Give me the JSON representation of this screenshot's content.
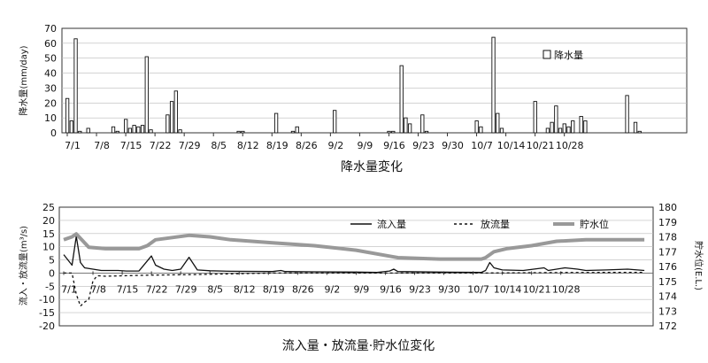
{
  "chart_data": [
    {
      "type": "bar",
      "caption": "降水量変化",
      "ylabel": "降水量(mm/day)",
      "legend": "降水量",
      "ylim": [
        0,
        70
      ],
      "yticks": [
        0,
        10,
        20,
        30,
        40,
        50,
        60,
        70
      ],
      "xticks": [
        "7/1",
        "7/8",
        "7/15",
        "7/22",
        "7/29",
        "8/5",
        "8/12",
        "8/19",
        "8/26",
        "9/2",
        "9/9",
        "9/16",
        "9/23",
        "9/30",
        "10/7",
        "10/14",
        "10/21",
        "10/28"
      ],
      "x_start": "7/1",
      "values": [
        23,
        8,
        63,
        1,
        0,
        3,
        0,
        0,
        0,
        0,
        0,
        4,
        1,
        0,
        9,
        3,
        5,
        4,
        5,
        51,
        2,
        0,
        0,
        0,
        12,
        21,
        28,
        2,
        0,
        0,
        0,
        0,
        0,
        0,
        0,
        0,
        0,
        0,
        0,
        0,
        0,
        1,
        1,
        0,
        0,
        0,
        0,
        0,
        0,
        0,
        13,
        0,
        0,
        0,
        1,
        4,
        0,
        0,
        0,
        0,
        0,
        0,
        0,
        0,
        15,
        0,
        0,
        0,
        0,
        0,
        0,
        0,
        0,
        0,
        0,
        0,
        0,
        1,
        1,
        0,
        45,
        10,
        6,
        0,
        0,
        12,
        1,
        0,
        0,
        0,
        0,
        0,
        0,
        0,
        0,
        0,
        0,
        0,
        8,
        4,
        0,
        0,
        64,
        13,
        3,
        0,
        0,
        0,
        0,
        0,
        0,
        0,
        21,
        0,
        0,
        3,
        7,
        18,
        3,
        6,
        4,
        8,
        0,
        11,
        8,
        0,
        0,
        0,
        0,
        0,
        0,
        0,
        0,
        0,
        25,
        0,
        7,
        1,
        0,
        0
      ]
    },
    {
      "type": "line",
      "caption": "流入量・放流量·貯水位変化",
      "ylabel_left": "流入・放流量(m³/s)",
      "ylabel_right": "貯水位(E.L.)",
      "ylim_left": [
        -20,
        25
      ],
      "ylim_right": [
        172,
        180
      ],
      "yticks_left": [
        -20,
        -15,
        -10,
        -5,
        0,
        5,
        10,
        15,
        20,
        25
      ],
      "yticks_right": [
        172,
        173,
        174,
        175,
        176,
        177,
        178,
        179,
        180
      ],
      "xticks": [
        "7/1",
        "7/8",
        "7/15",
        "7/22",
        "7/29",
        "8/5",
        "8/12",
        "8/19",
        "8/26",
        "9/2",
        "9/9",
        "9/16",
        "9/23",
        "9/30",
        "10/7",
        "10/14",
        "10/21",
        "10/28"
      ],
      "x_start": "7/1",
      "series": [
        {
          "name": "流入量",
          "axis": "left",
          "color": "#111111",
          "dash": "solid",
          "points": [
            [
              0,
              7
            ],
            [
              2,
              3
            ],
            [
              3,
              14
            ],
            [
              4,
              4
            ],
            [
              5,
              2
            ],
            [
              7,
              1.5
            ],
            [
              9,
              1
            ],
            [
              13,
              1
            ],
            [
              15,
              0.8
            ],
            [
              18,
              0.8
            ],
            [
              21,
              6.5
            ],
            [
              22,
              3
            ],
            [
              24,
              1.5
            ],
            [
              26,
              1
            ],
            [
              28,
              1.5
            ],
            [
              30,
              6
            ],
            [
              32,
              1.2
            ],
            [
              35,
              0.9
            ],
            [
              40,
              0.7
            ],
            [
              50,
              0.6
            ],
            [
              52,
              1
            ],
            [
              53,
              0.6
            ],
            [
              60,
              0.5
            ],
            [
              70,
              0.4
            ],
            [
              75,
              0.3
            ],
            [
              78,
              0.8
            ],
            [
              79,
              1.5
            ],
            [
              80,
              0.6
            ],
            [
              90,
              0.4
            ],
            [
              100,
              0.3
            ],
            [
              101,
              1
            ],
            [
              102,
              4
            ],
            [
              103,
              2
            ],
            [
              105,
              1.2
            ],
            [
              110,
              1
            ],
            [
              115,
              2
            ],
            [
              116,
              1
            ],
            [
              120,
              2
            ],
            [
              123,
              1.5
            ],
            [
              125,
              1
            ],
            [
              130,
              1.2
            ],
            [
              135,
              1.5
            ],
            [
              139,
              1
            ]
          ]
        },
        {
          "name": "放流量",
          "axis": "left",
          "color": "#111111",
          "dash": "dashed",
          "points": [
            [
              0,
              0
            ],
            [
              2,
              0
            ],
            [
              3,
              -8
            ],
            [
              4,
              -12.5
            ],
            [
              5,
              -11
            ],
            [
              6,
              -10
            ],
            [
              7,
              -3
            ],
            [
              8,
              -1
            ],
            [
              10,
              -1.2
            ],
            [
              15,
              -1
            ],
            [
              20,
              -0.8
            ],
            [
              30,
              -0.6
            ],
            [
              40,
              -0.3
            ],
            [
              50,
              0
            ],
            [
              70,
              0
            ],
            [
              100,
              0
            ],
            [
              120,
              0.2
            ],
            [
              139,
              0.3
            ]
          ]
        },
        {
          "name": "貯水位",
          "axis": "right",
          "color": "#999999",
          "dash": "thick",
          "points": [
            [
              0,
              177.8
            ],
            [
              2,
              178.0
            ],
            [
              3,
              178.2
            ],
            [
              4,
              177.9
            ],
            [
              6,
              177.3
            ],
            [
              10,
              177.2
            ],
            [
              18,
              177.2
            ],
            [
              20,
              177.4
            ],
            [
              22,
              177.8
            ],
            [
              26,
              177.95
            ],
            [
              30,
              178.1
            ],
            [
              35,
              178
            ],
            [
              40,
              177.8
            ],
            [
              50,
              177.6
            ],
            [
              60,
              177.4
            ],
            [
              70,
              177.1
            ],
            [
              78,
              176.7
            ],
            [
              80,
              176.6
            ],
            [
              90,
              176.5
            ],
            [
              100,
              176.5
            ],
            [
              101,
              176.6
            ],
            [
              103,
              177.0
            ],
            [
              106,
              177.2
            ],
            [
              112,
              177.4
            ],
            [
              118,
              177.7
            ],
            [
              125,
              177.8
            ],
            [
              132,
              177.8
            ],
            [
              139,
              177.8
            ]
          ]
        }
      ]
    }
  ]
}
